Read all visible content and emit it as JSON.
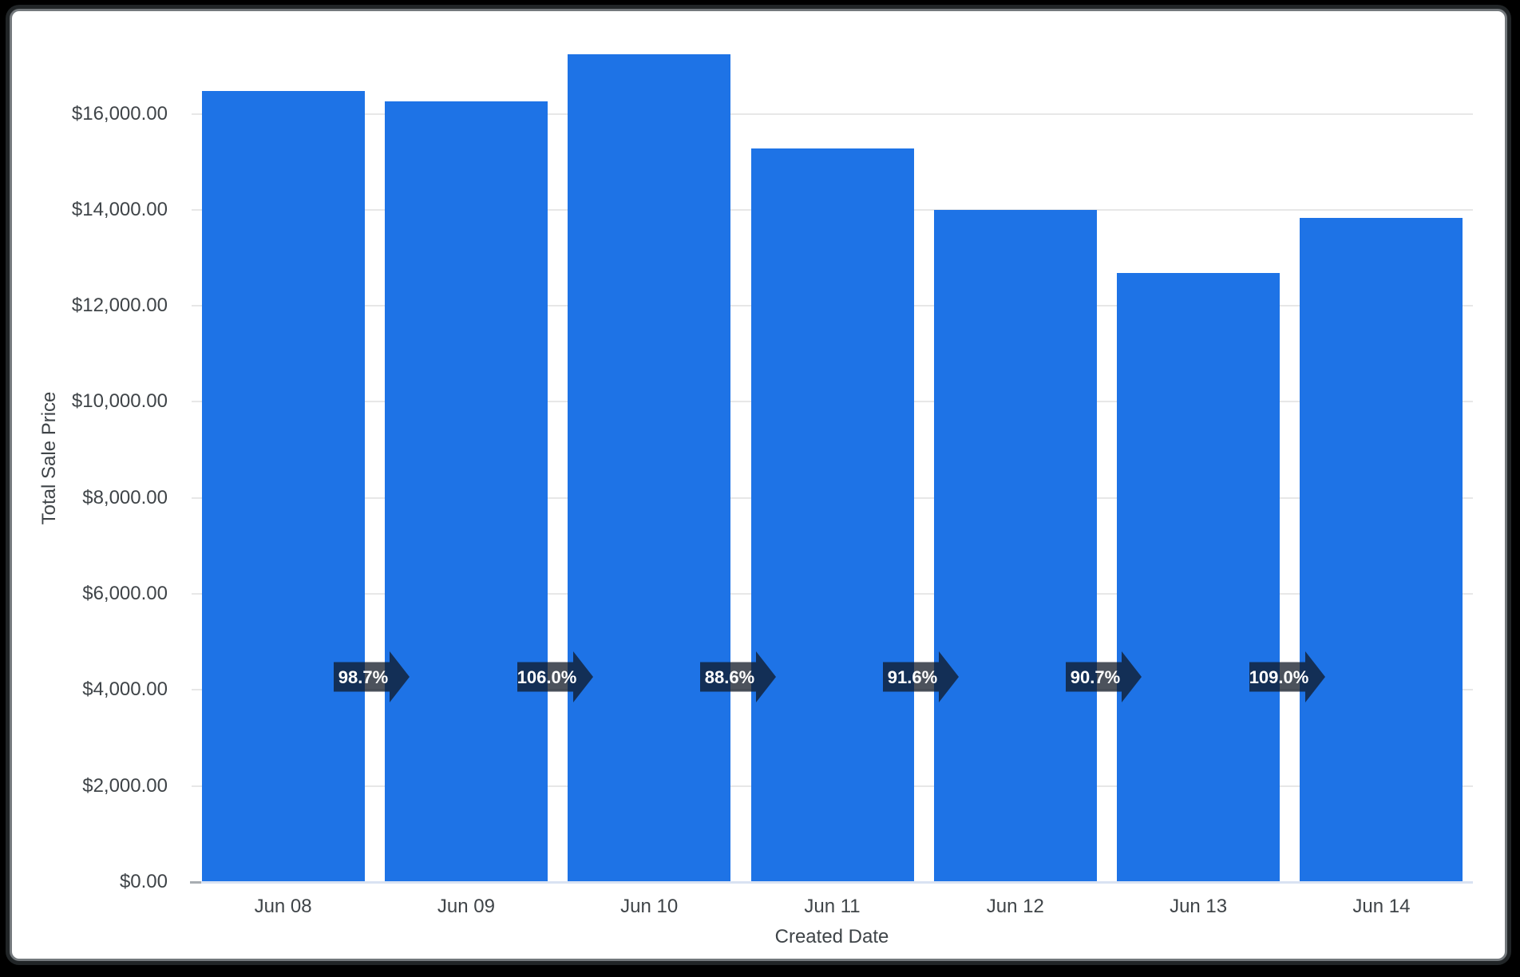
{
  "frame": {
    "background_color": "#000000",
    "card_background": "#ffffff",
    "card_border_color": "#74797d"
  },
  "chart_data": {
    "type": "bar",
    "title": "",
    "xlabel": "Created Date",
    "ylabel": "Total Sale Price",
    "categories": [
      "Jun 08",
      "Jun 09",
      "Jun 10",
      "Jun 11",
      "Jun 12",
      "Jun 13",
      "Jun 14"
    ],
    "values": [
      16480,
      16266,
      17242,
      15276,
      13993,
      12692,
      13834
    ],
    "percent_change_labels": [
      "98.7%",
      "106.0%",
      "88.6%",
      "91.6%",
      "90.7%",
      "109.0%"
    ],
    "y_ticks": [
      {
        "value": 0,
        "label": "$0.00"
      },
      {
        "value": 2000,
        "label": "$2,000.00"
      },
      {
        "value": 4000,
        "label": "$4,000.00"
      },
      {
        "value": 6000,
        "label": "$6,000.00"
      },
      {
        "value": 8000,
        "label": "$8,000.00"
      },
      {
        "value": 10000,
        "label": "$10,000.00"
      },
      {
        "value": 12000,
        "label": "$12,000.00"
      },
      {
        "value": 14000,
        "label": "$14,000.00"
      },
      {
        "value": 16000,
        "label": "$16,000.00"
      }
    ],
    "ylim": [
      0,
      17700
    ],
    "grid": true,
    "legend": "none",
    "bar_color": "#1e73e6",
    "gridline_color": "#e7e7e7",
    "axis_label_color": "#3f4448",
    "arrow_fill": "rgba(16,24,38,0.75)",
    "arrow_text_color": "#ffffff",
    "baseline_color": "#d9e2f2"
  }
}
